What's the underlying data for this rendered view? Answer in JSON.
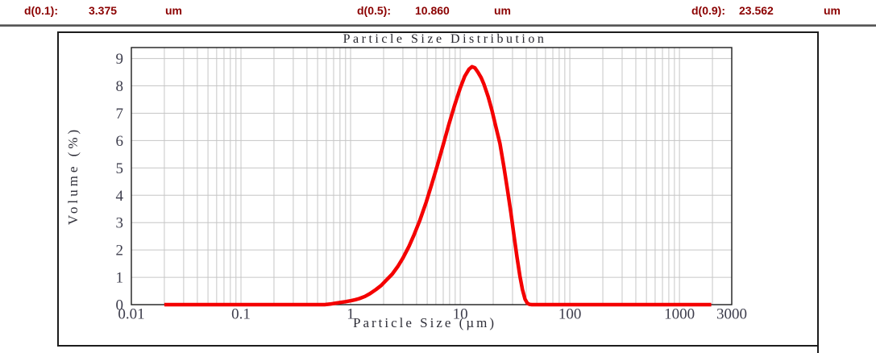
{
  "header": {
    "items": [
      {
        "label": "d(0.1):",
        "value": "3.375",
        "unit": "um"
      },
      {
        "label": "d(0.5):",
        "value": "10.860",
        "unit": "um"
      },
      {
        "label": "d(0.9):",
        "value": "23.562",
        "unit": "um"
      }
    ]
  },
  "colors": {
    "header_text": "#8b0000",
    "curve": "#f40000",
    "grid": "#c6c6c6",
    "axis": "#1c1c1c",
    "tick_text": "#3d3d4c"
  },
  "chart_data": {
    "type": "line",
    "title": "Particle Size Distribution",
    "xlabel": "Particle Size (µm)",
    "ylabel": "Volume (%)",
    "x_scale": "log",
    "xlim": [
      0.01,
      3000
    ],
    "ylim": [
      0,
      9.4
    ],
    "grid": true,
    "legend": false,
    "x_ticks": [
      0.01,
      0.1,
      1,
      10,
      100,
      1000,
      3000
    ],
    "x_tick_labels": [
      "0.01",
      "0.1",
      "1",
      "10",
      "100",
      "1000",
      "3000"
    ],
    "y_ticks": [
      0,
      1,
      2,
      3,
      4,
      5,
      6,
      7,
      8,
      9
    ],
    "annotations": {
      "peak_x_um": 12.8,
      "peak_volume_pct": 8.7
    },
    "series": [
      {
        "name": "Volume (%)",
        "color": "#f40000",
        "points": [
          [
            0.02,
            0
          ],
          [
            0.05,
            0
          ],
          [
            0.1,
            0
          ],
          [
            0.2,
            0
          ],
          [
            0.3,
            0
          ],
          [
            0.4,
            0
          ],
          [
            0.5,
            0
          ],
          [
            0.58,
            0
          ],
          [
            0.65,
            0.02
          ],
          [
            0.72,
            0.05
          ],
          [
            0.8,
            0.08
          ],
          [
            0.9,
            0.11
          ],
          [
            1.0,
            0.14
          ],
          [
            1.1,
            0.18
          ],
          [
            1.2,
            0.22
          ],
          [
            1.35,
            0.3
          ],
          [
            1.5,
            0.4
          ],
          [
            1.7,
            0.55
          ],
          [
            1.9,
            0.7
          ],
          [
            2.1,
            0.88
          ],
          [
            2.4,
            1.12
          ],
          [
            2.7,
            1.4
          ],
          [
            3.0,
            1.7
          ],
          [
            3.4,
            2.12
          ],
          [
            3.8,
            2.56
          ],
          [
            4.3,
            3.1
          ],
          [
            4.9,
            3.75
          ],
          [
            5.5,
            4.4
          ],
          [
            6.2,
            5.1
          ],
          [
            7.0,
            5.85
          ],
          [
            7.9,
            6.6
          ],
          [
            8.9,
            7.3
          ],
          [
            10.0,
            7.92
          ],
          [
            11.0,
            8.35
          ],
          [
            12.0,
            8.6
          ],
          [
            12.8,
            8.7
          ],
          [
            13.6,
            8.66
          ],
          [
            14.5,
            8.5
          ],
          [
            15.5,
            8.3
          ],
          [
            16.5,
            8.05
          ],
          [
            18.0,
            7.6
          ],
          [
            19.5,
            7.1
          ],
          [
            21.0,
            6.55
          ],
          [
            23.0,
            5.9
          ],
          [
            25.0,
            5.05
          ],
          [
            27.0,
            4.2
          ],
          [
            29.0,
            3.35
          ],
          [
            31.0,
            2.5
          ],
          [
            33.0,
            1.72
          ],
          [
            35.0,
            1.05
          ],
          [
            37.0,
            0.55
          ],
          [
            39.0,
            0.2
          ],
          [
            41.0,
            0.05
          ],
          [
            43.0,
            0.01
          ],
          [
            45.0,
            0
          ],
          [
            60,
            0
          ],
          [
            100,
            0
          ],
          [
            200,
            0
          ],
          [
            500,
            0
          ],
          [
            1000,
            0
          ],
          [
            1950,
            0
          ]
        ]
      }
    ]
  }
}
